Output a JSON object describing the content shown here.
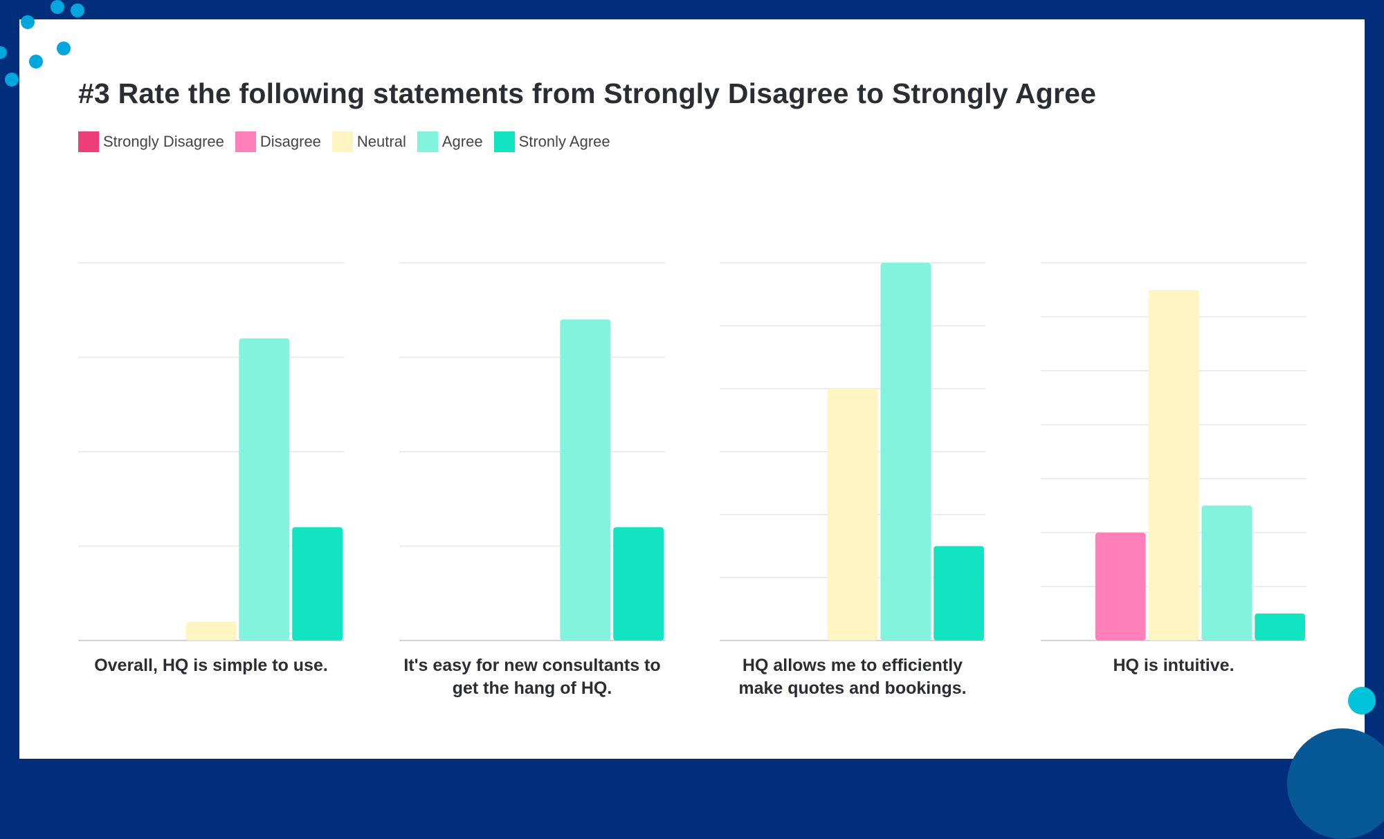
{
  "title": "#3 Rate the following statements from Strongly Disagree to Strongly Agree",
  "legend": [
    {
      "label": "Strongly Disagree",
      "color": "#ee3e7a"
    },
    {
      "label": "Disagree",
      "color": "#ff7fba"
    },
    {
      "label": "Neutral",
      "color": "#fff5c2"
    },
    {
      "label": "Agree",
      "color": "#82f4de"
    },
    {
      "label": "Stronly Agree",
      "color": "#12e3c0"
    }
  ],
  "chart_data": [
    {
      "type": "bar",
      "categories": [
        "Overall, HQ is simple to use."
      ],
      "series": [
        {
          "name": "Strongly Disagree",
          "values": [
            0
          ]
        },
        {
          "name": "Disagree",
          "values": [
            0
          ]
        },
        {
          "name": "Neutral",
          "values": [
            1
          ]
        },
        {
          "name": "Agree",
          "values": [
            16
          ]
        },
        {
          "name": "Stronly Agree",
          "values": [
            6
          ]
        }
      ],
      "ylim": [
        0,
        20
      ],
      "grid_step": 5,
      "grid": true,
      "legend": "top-left"
    },
    {
      "type": "bar",
      "categories": [
        "It's easy for new consultants to get the hang of HQ."
      ],
      "series": [
        {
          "name": "Strongly Disagree",
          "values": [
            0
          ]
        },
        {
          "name": "Disagree",
          "values": [
            0
          ]
        },
        {
          "name": "Neutral",
          "values": [
            0
          ]
        },
        {
          "name": "Agree",
          "values": [
            17
          ]
        },
        {
          "name": "Stronly Agree",
          "values": [
            6
          ]
        }
      ],
      "ylim": [
        0,
        20
      ],
      "grid_step": 5,
      "grid": true,
      "legend": "top-left"
    },
    {
      "type": "bar",
      "categories": [
        "HQ allows me to efficiently make quotes and bookings."
      ],
      "series": [
        {
          "name": "Strongly Disagree",
          "values": [
            0
          ]
        },
        {
          "name": "Disagree",
          "values": [
            0
          ]
        },
        {
          "name": "Neutral",
          "values": [
            8
          ]
        },
        {
          "name": "Agree",
          "values": [
            12
          ]
        },
        {
          "name": "Stronly Agree",
          "values": [
            3
          ]
        }
      ],
      "ylim": [
        0,
        12
      ],
      "grid_step": 2,
      "grid": true,
      "legend": "top-left"
    },
    {
      "type": "bar",
      "categories": [
        "HQ is intuitive."
      ],
      "series": [
        {
          "name": "Strongly Disagree",
          "values": [
            0
          ]
        },
        {
          "name": "Disagree",
          "values": [
            4
          ]
        },
        {
          "name": "Neutral",
          "values": [
            13
          ]
        },
        {
          "name": "Agree",
          "values": [
            5
          ]
        },
        {
          "name": "Stronly Agree",
          "values": [
            1
          ]
        }
      ],
      "ylim": [
        0,
        14
      ],
      "grid_step": 2,
      "grid": true,
      "legend": "top-left"
    }
  ]
}
